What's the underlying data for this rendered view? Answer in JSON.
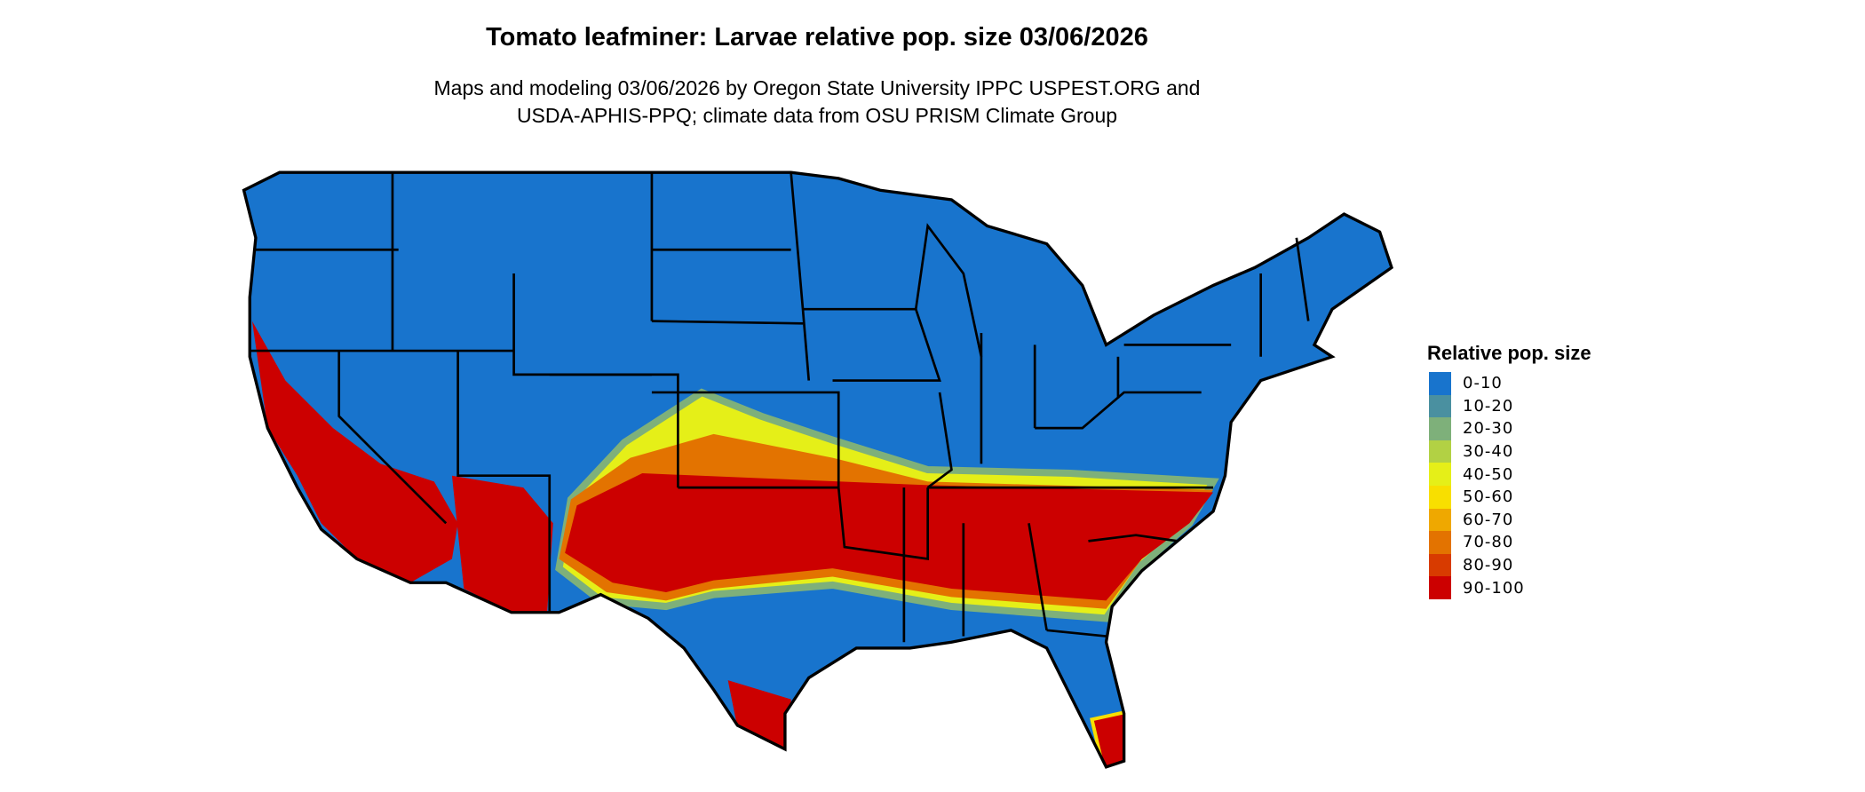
{
  "title": "Tomato leafminer: Larvae relative pop. size 03/06/2026",
  "subtitle_line1": "Maps and modeling 03/06/2026 by Oregon State University IPPC USPEST.ORG and",
  "subtitle_line2": "USDA-APHIS-PPQ; climate data from OSU PRISM Climate Group",
  "legend": {
    "title": "Relative pop. size",
    "items": [
      {
        "label": "0-10",
        "color": "#1874CD"
      },
      {
        "label": "10-20",
        "color": "#4A90A0"
      },
      {
        "label": "20-30",
        "color": "#7EB07A"
      },
      {
        "label": "30-40",
        "color": "#B2D144"
      },
      {
        "label": "40-50",
        "color": "#E5EF18"
      },
      {
        "label": "50-60",
        "color": "#F8DF00"
      },
      {
        "label": "60-70",
        "color": "#EFA800"
      },
      {
        "label": "70-80",
        "color": "#E37300"
      },
      {
        "label": "80-90",
        "color": "#D83B00"
      },
      {
        "label": "90-100",
        "color": "#CC0000"
      }
    ]
  },
  "map": {
    "region": "Contiguous United States",
    "border_color": "#000000"
  }
}
